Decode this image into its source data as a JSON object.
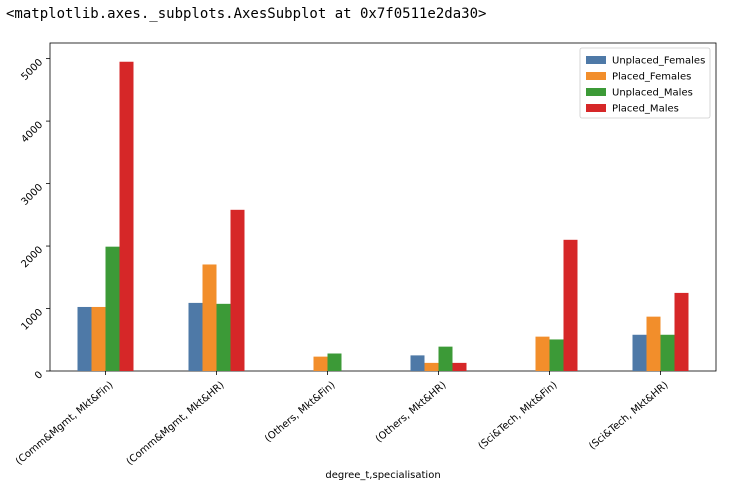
{
  "output_repr": "<matplotlib.axes._subplots.AxesSubplot at 0x7f0511e2da30>",
  "chart_data": {
    "type": "bar",
    "title": "",
    "xlabel": "degree_t,specialisation",
    "ylabel": "",
    "categories": [
      "(Comm&Mgmt, Mkt&Fin)",
      "(Comm&Mgmt, Mkt&HR)",
      "(Others, Mkt&Fin)",
      "(Others, Mkt&HR)",
      "(Sci&Tech, Mkt&Fin)",
      "(Sci&Tech, Mkt&HR)"
    ],
    "series": [
      {
        "name": "Unplaced_Females",
        "color": "#4e79a7",
        "values": [
          1025,
          1090,
          0,
          250,
          0,
          580
        ]
      },
      {
        "name": "Placed_Females",
        "color": "#f28e2b",
        "values": [
          1025,
          1705,
          230,
          130,
          550,
          870
        ]
      },
      {
        "name": "Unplaced_Males",
        "color": "#3c9a37",
        "values": [
          1990,
          1075,
          280,
          390,
          505,
          580
        ]
      },
      {
        "name": "Placed_Males",
        "color": "#d62728",
        "values": [
          4950,
          2580,
          0,
          130,
          2100,
          1250
        ]
      }
    ],
    "yticks": [
      0,
      1000,
      2000,
      3000,
      4000,
      5000
    ],
    "ylim": [
      0,
      5250
    ],
    "legend": "top-right",
    "grid": false
  }
}
